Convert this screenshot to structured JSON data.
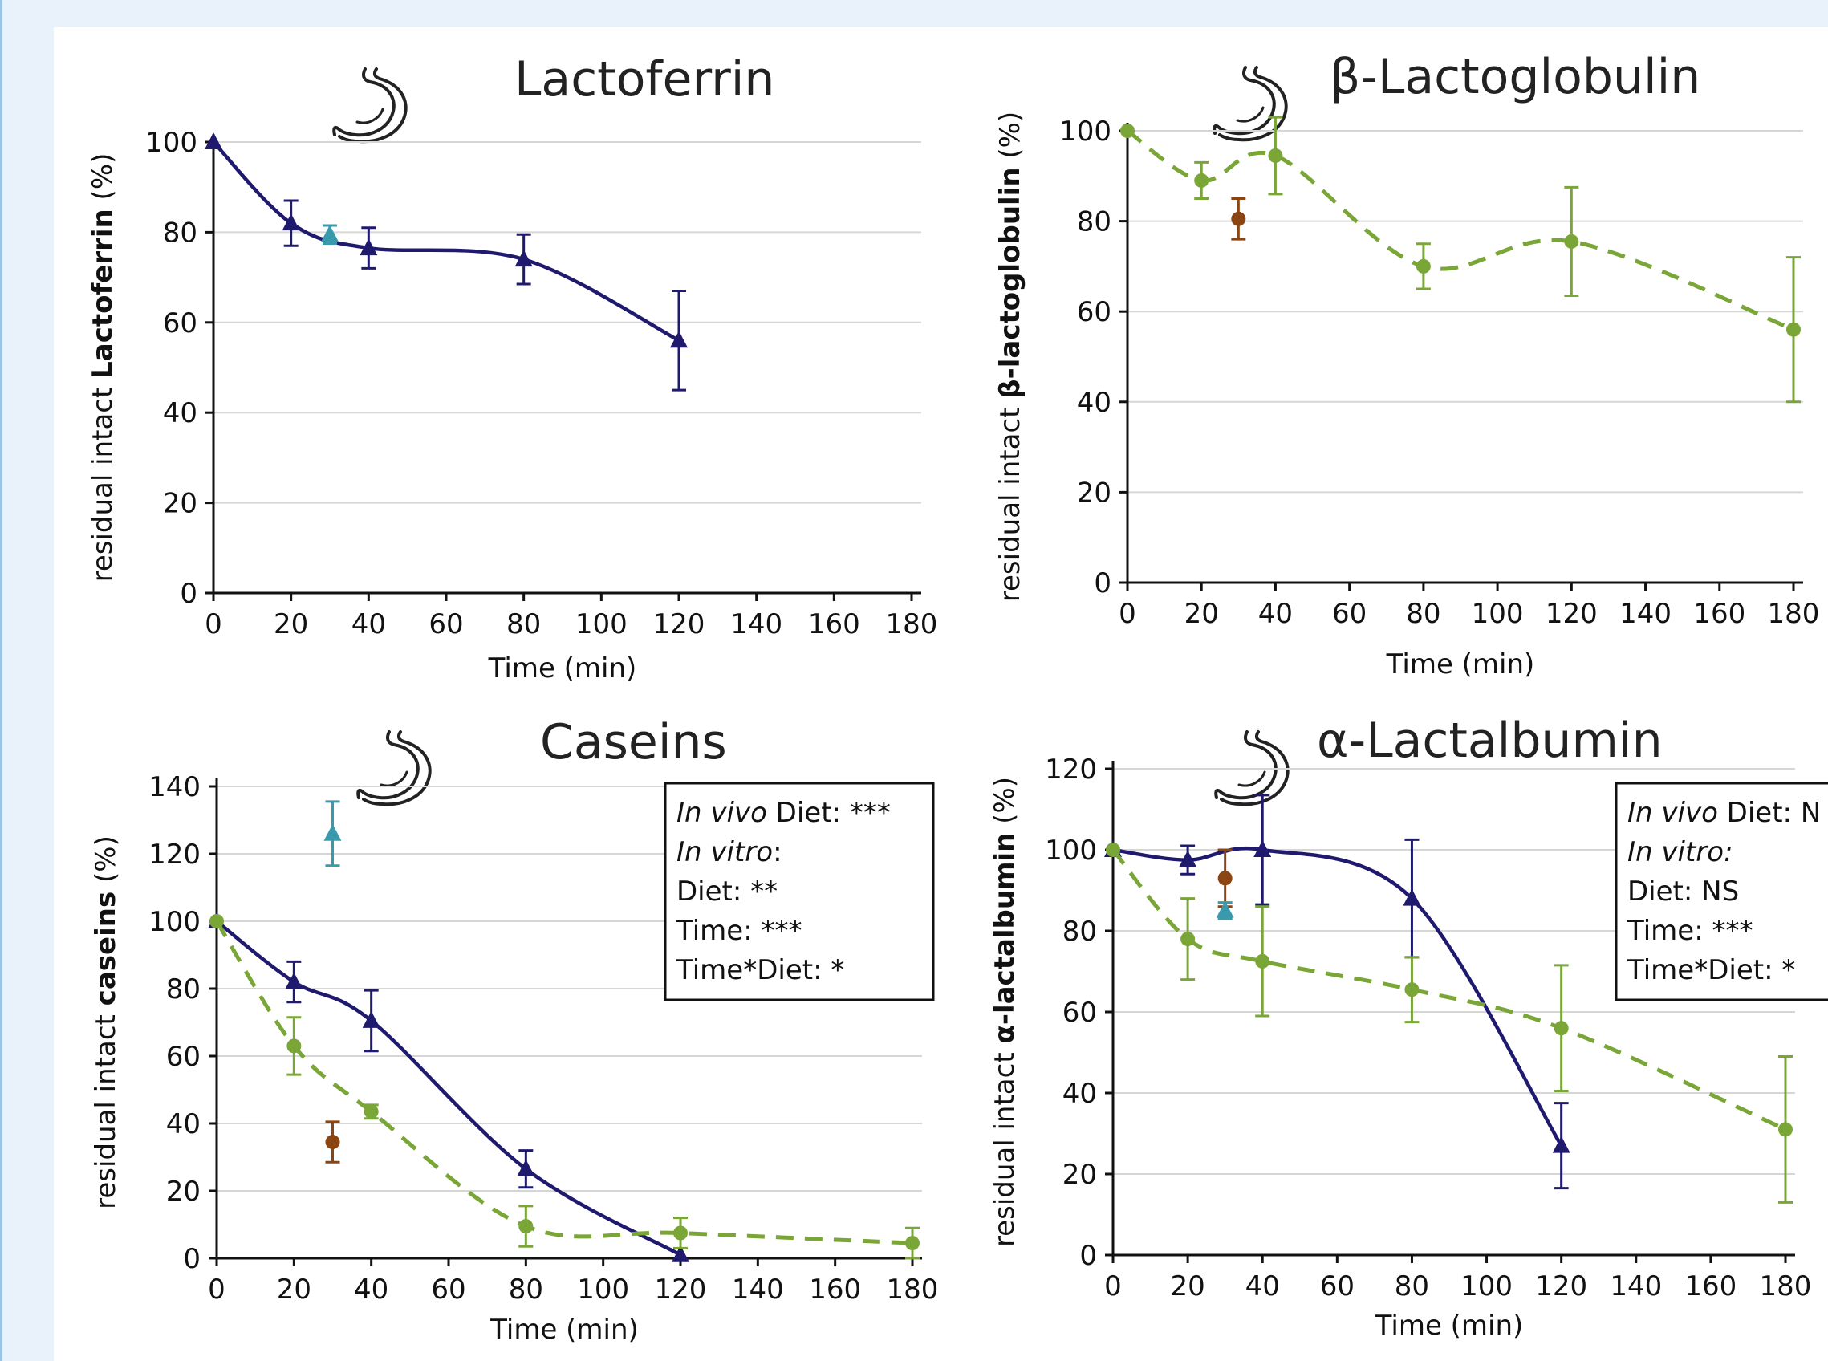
{
  "chart_data": [
    {
      "type": "line",
      "title": "Lactoferrin",
      "xlabel": "Time (min)",
      "ylabel_prefix": "residual intact ",
      "ylabel_bold": "Lactoferrin",
      "ylabel_suffix": " (%)",
      "xlim": [
        0,
        180
      ],
      "ylim": [
        0,
        100
      ],
      "xticks": [
        0,
        20,
        40,
        60,
        80,
        100,
        120,
        140,
        160,
        180
      ],
      "yticks": [
        0,
        20,
        40,
        60,
        80,
        100
      ],
      "grid": true,
      "series": [
        {
          "style": "solid",
          "marker": "triangle",
          "color": "#1f1a6e",
          "points": [
            {
              "x": 0,
              "y": 100,
              "err": 0
            },
            {
              "x": 20,
              "y": 82,
              "err": 5
            },
            {
              "x": 40,
              "y": 76.5,
              "err": 4.5
            },
            {
              "x": 80,
              "y": 74,
              "err": 5.5
            },
            {
              "x": 120,
              "y": 56,
              "err": 11
            }
          ]
        },
        {
          "style": "none",
          "marker": "triangle",
          "color": "#3a9aad",
          "points": [
            {
              "x": 30,
              "y": 79.5,
              "err": 2
            }
          ]
        }
      ],
      "annotation": null
    },
    {
      "type": "line",
      "title": "β-Lactoglobulin",
      "xlabel": "Time (min)",
      "ylabel_prefix": "residual intact ",
      "ylabel_bold": "β-lactoglobulin",
      "ylabel_suffix": " (%)",
      "xlim": [
        0,
        180
      ],
      "ylim": [
        0,
        100
      ],
      "xticks": [
        0,
        20,
        40,
        60,
        80,
        100,
        120,
        140,
        160,
        180
      ],
      "yticks": [
        0,
        20,
        40,
        60,
        80,
        100
      ],
      "grid": true,
      "series": [
        {
          "style": "dashed",
          "marker": "circle",
          "color": "#7aa537",
          "points": [
            {
              "x": 0,
              "y": 100,
              "err": 0
            },
            {
              "x": 20,
              "y": 89,
              "err": 4
            },
            {
              "x": 40,
              "y": 94.5,
              "err": 8.5
            },
            {
              "x": 80,
              "y": 70,
              "err": 5
            },
            {
              "x": 120,
              "y": 75.5,
              "err": 12
            },
            {
              "x": 180,
              "y": 56,
              "err": 16
            }
          ]
        },
        {
          "style": "none",
          "marker": "circle",
          "color": "#8b4513",
          "points": [
            {
              "x": 30,
              "y": 80.5,
              "err": 4.5
            }
          ]
        }
      ],
      "annotation": null
    },
    {
      "type": "line",
      "title": "Caseins",
      "xlabel": "Time (min)",
      "ylabel_prefix": "residual intact ",
      "ylabel_bold": "caseins",
      "ylabel_suffix": " (%)",
      "xlim": [
        0,
        180
      ],
      "ylim": [
        0,
        140
      ],
      "xticks": [
        0,
        20,
        40,
        60,
        80,
        100,
        120,
        140,
        160,
        180
      ],
      "yticks": [
        0,
        20,
        40,
        60,
        80,
        100,
        120,
        140
      ],
      "grid": true,
      "series": [
        {
          "style": "solid",
          "marker": "triangle",
          "color": "#1f1a6e",
          "points": [
            {
              "x": 0,
              "y": 100,
              "err": 0
            },
            {
              "x": 20,
              "y": 82,
              "err": 6
            },
            {
              "x": 40,
              "y": 70.5,
              "err": 9
            },
            {
              "x": 80,
              "y": 26.5,
              "err": 5.5
            },
            {
              "x": 120,
              "y": 1,
              "err": 0
            }
          ]
        },
        {
          "style": "dashed",
          "marker": "circle",
          "color": "#7aa537",
          "points": [
            {
              "x": 0,
              "y": 100,
              "err": 0
            },
            {
              "x": 20,
              "y": 63,
              "err": 8.5
            },
            {
              "x": 40,
              "y": 43.5,
              "err": 2
            },
            {
              "x": 80,
              "y": 9.5,
              "err": 6
            },
            {
              "x": 120,
              "y": 7.5,
              "err": 4.5
            },
            {
              "x": 180,
              "y": 4.5,
              "err": 4.5
            }
          ]
        },
        {
          "style": "none",
          "marker": "triangle",
          "color": "#3a9aad",
          "points": [
            {
              "x": 30,
              "y": 126,
              "err": 9.5
            }
          ]
        },
        {
          "style": "none",
          "marker": "circle",
          "color": "#8b4513",
          "points": [
            {
              "x": 30,
              "y": 34.5,
              "err": 6
            }
          ]
        }
      ],
      "annotation": {
        "lines": [
          {
            "italic": "In vivo",
            "normal": " Diet: ***"
          },
          {
            "italic": "In vitro",
            "normal": ":"
          },
          {
            "italic": "",
            "normal": "Diet: **"
          },
          {
            "italic": "",
            "normal": "Time: ***"
          },
          {
            "italic": "",
            "normal": "Time*Diet: *"
          }
        ]
      }
    },
    {
      "type": "line",
      "title": "α-Lactalbumin",
      "xlabel": "Time (min)",
      "ylabel_prefix": "residual intact ",
      "ylabel_bold": "α-lactalbumin",
      "ylabel_suffix": " (%)",
      "xlim": [
        0,
        180
      ],
      "ylim": [
        0,
        120
      ],
      "xticks": [
        0,
        20,
        40,
        60,
        80,
        100,
        120,
        140,
        160,
        180
      ],
      "yticks": [
        0,
        20,
        40,
        60,
        80,
        100,
        120
      ],
      "grid": true,
      "series": [
        {
          "style": "solid",
          "marker": "triangle",
          "color": "#1f1a6e",
          "points": [
            {
              "x": 0,
              "y": 100,
              "err": 0
            },
            {
              "x": 20,
              "y": 97.5,
              "err": 3.5
            },
            {
              "x": 40,
              "y": 100,
              "err": 13.5
            },
            {
              "x": 80,
              "y": 88,
              "err": 14.5
            },
            {
              "x": 120,
              "y": 27,
              "err": 10.5
            }
          ]
        },
        {
          "style": "dashed",
          "marker": "circle",
          "color": "#7aa537",
          "points": [
            {
              "x": 0,
              "y": 100,
              "err": 0
            },
            {
              "x": 20,
              "y": 78,
              "err": 10
            },
            {
              "x": 40,
              "y": 72.5,
              "err": 13.5
            },
            {
              "x": 80,
              "y": 65.5,
              "err": 8
            },
            {
              "x": 120,
              "y": 56,
              "err": 15.5
            },
            {
              "x": 180,
              "y": 31,
              "err": 18
            }
          ]
        },
        {
          "style": "none",
          "marker": "circle",
          "color": "#8b4513",
          "points": [
            {
              "x": 30,
              "y": 93,
              "err": 7
            }
          ]
        },
        {
          "style": "none",
          "marker": "triangle",
          "color": "#3a9aad",
          "points": [
            {
              "x": 30,
              "y": 85,
              "err": 2
            }
          ]
        }
      ],
      "annotation": {
        "lines": [
          {
            "italic": "In vivo",
            "normal": " Diet: N"
          },
          {
            "italic": "In vitro:",
            "normal": ""
          },
          {
            "italic": "",
            "normal": "Diet: NS"
          },
          {
            "italic": "",
            "normal": "Time: ***"
          },
          {
            "italic": "",
            "normal": "Time*Diet: *"
          }
        ]
      }
    }
  ]
}
